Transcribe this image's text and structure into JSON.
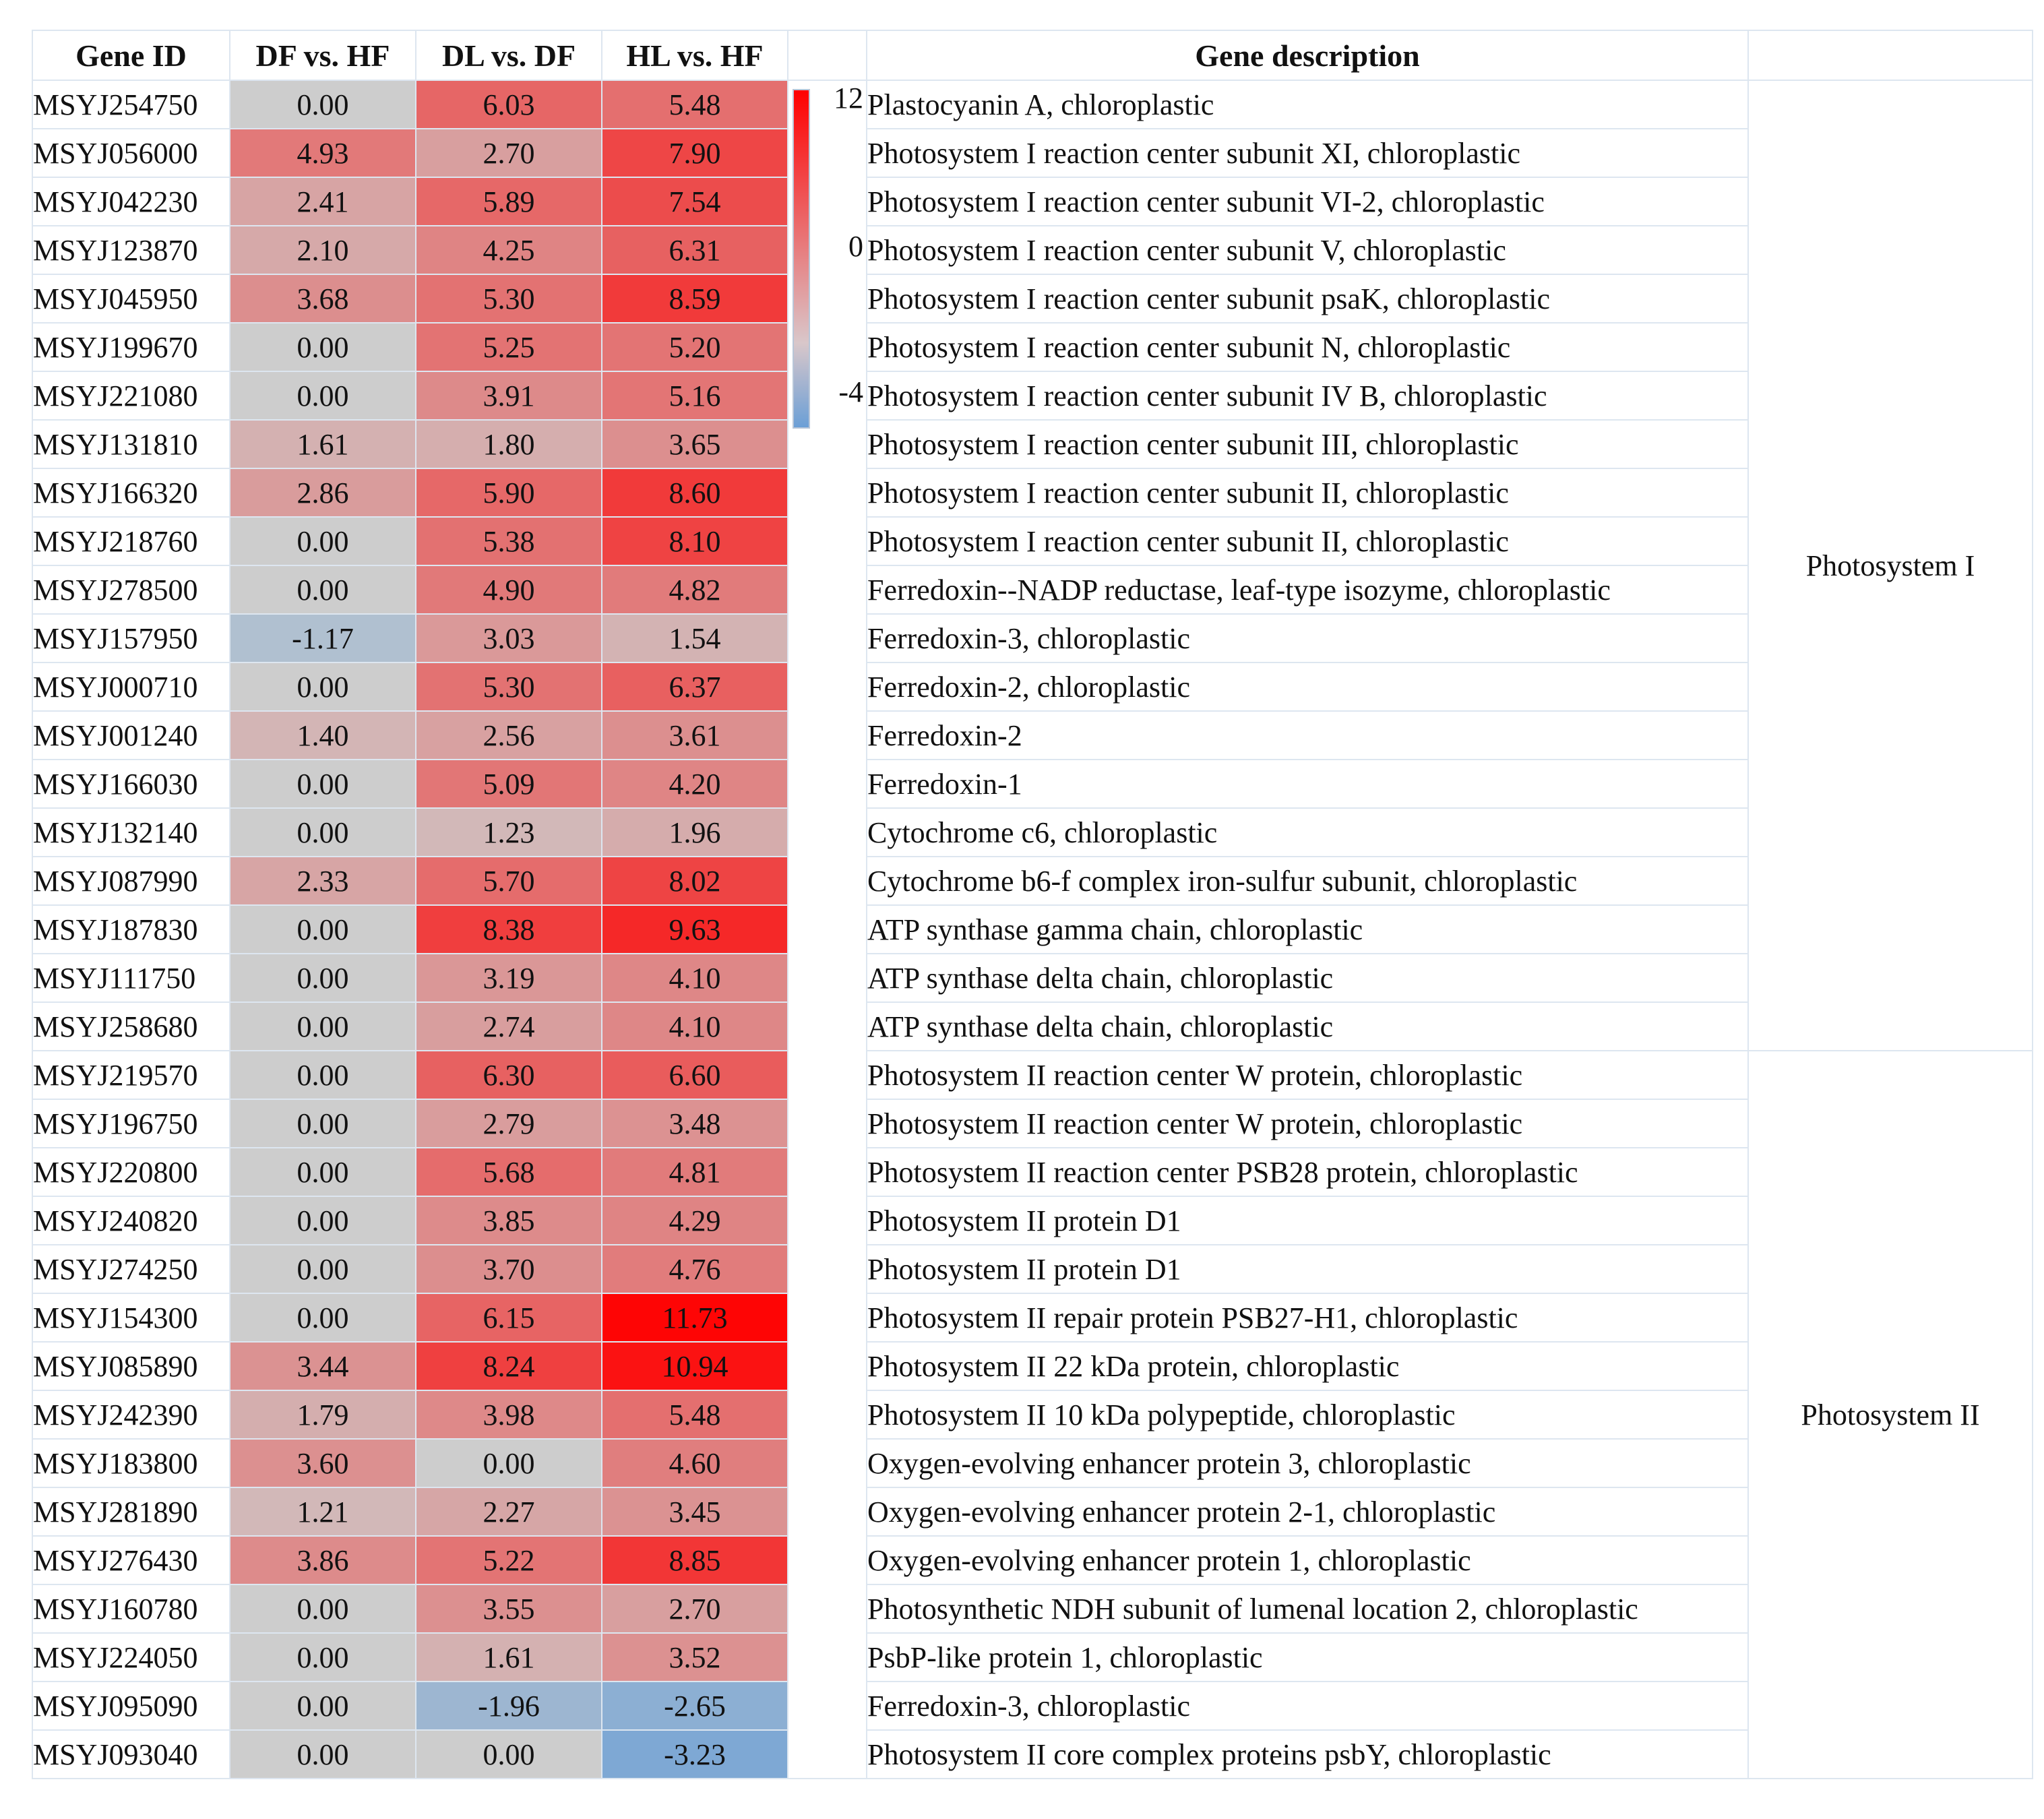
{
  "chart_data": {
    "type": "heatmap",
    "columns": [
      "Gene ID",
      "DF vs. HF",
      "DL vs. DF",
      "HL vs. HF",
      "",
      "Gene description",
      ""
    ],
    "value_columns": [
      "DF vs. HF",
      "DL vs. DF",
      "HL vs. HF"
    ],
    "color_scale": {
      "min": -4,
      "mid": 0,
      "max": 12,
      "labels": [
        "12",
        "0",
        "-4"
      ],
      "colors": {
        "low": "#6b9fd6",
        "mid": "#cdcdcd",
        "high": "#ff0000"
      }
    },
    "rows": [
      {
        "id": "MSYJ254750",
        "values": [
          "0.00",
          "6.03",
          "5.48"
        ],
        "desc": "Plastocyanin A, chloroplastic"
      },
      {
        "id": "MSYJ056000",
        "values": [
          "4.93",
          "2.70",
          "7.90"
        ],
        "desc": "Photosystem I reaction center subunit XI, chloroplastic"
      },
      {
        "id": "MSYJ042230",
        "values": [
          "2.41",
          "5.89",
          "7.54"
        ],
        "desc": "Photosystem I reaction center subunit VI-2, chloroplastic"
      },
      {
        "id": "MSYJ123870",
        "values": [
          "2.10",
          "4.25",
          "6.31"
        ],
        "desc": "Photosystem I reaction center subunit V, chloroplastic"
      },
      {
        "id": "MSYJ045950",
        "values": [
          "3.68",
          "5.30",
          "8.59"
        ],
        "desc": "Photosystem I reaction center subunit psaK, chloroplastic"
      },
      {
        "id": "MSYJ199670",
        "values": [
          "0.00",
          "5.25",
          "5.20"
        ],
        "desc": "Photosystem I reaction center subunit N, chloroplastic"
      },
      {
        "id": "MSYJ221080",
        "values": [
          "0.00",
          "3.91",
          "5.16"
        ],
        "desc": "Photosystem I reaction center subunit IV B, chloroplastic"
      },
      {
        "id": "MSYJ131810",
        "values": [
          "1.61",
          "1.80",
          "3.65"
        ],
        "desc": "Photosystem I reaction center subunit III, chloroplastic"
      },
      {
        "id": "MSYJ166320",
        "values": [
          "2.86",
          "5.90",
          "8.60"
        ],
        "desc": "Photosystem I reaction center subunit II, chloroplastic"
      },
      {
        "id": "MSYJ218760",
        "values": [
          "0.00",
          "5.38",
          "8.10"
        ],
        "desc": "Photosystem I reaction center subunit II, chloroplastic"
      },
      {
        "id": "MSYJ278500",
        "values": [
          "0.00",
          "4.90",
          "4.82"
        ],
        "desc": "Ferredoxin--NADP reductase, leaf-type isozyme, chloroplastic"
      },
      {
        "id": "MSYJ157950",
        "values": [
          "-1.17",
          "3.03",
          "1.54"
        ],
        "desc": "Ferredoxin-3, chloroplastic"
      },
      {
        "id": "MSYJ000710",
        "values": [
          "0.00",
          "5.30",
          "6.37"
        ],
        "desc": "Ferredoxin-2, chloroplastic"
      },
      {
        "id": "MSYJ001240",
        "values": [
          "1.40",
          "2.56",
          "3.61"
        ],
        "desc": "Ferredoxin-2"
      },
      {
        "id": "MSYJ166030",
        "values": [
          "0.00",
          "5.09",
          "4.20"
        ],
        "desc": "Ferredoxin-1"
      },
      {
        "id": "MSYJ132140",
        "values": [
          "0.00",
          "1.23",
          "1.96"
        ],
        "desc": "Cytochrome c6, chloroplastic"
      },
      {
        "id": "MSYJ087990",
        "values": [
          "2.33",
          "5.70",
          "8.02"
        ],
        "desc": "Cytochrome b6-f complex iron-sulfur subunit, chloroplastic"
      },
      {
        "id": "MSYJ187830",
        "values": [
          "0.00",
          "8.38",
          "9.63"
        ],
        "desc": "ATP synthase gamma chain, chloroplastic"
      },
      {
        "id": "MSYJ111750",
        "values": [
          "0.00",
          "3.19",
          "4.10"
        ],
        "desc": "ATP synthase delta chain, chloroplastic"
      },
      {
        "id": "MSYJ258680",
        "values": [
          "0.00",
          "2.74",
          "4.10"
        ],
        "desc": "ATP synthase delta chain, chloroplastic"
      },
      {
        "id": "MSYJ219570",
        "values": [
          "0.00",
          "6.30",
          "6.60"
        ],
        "desc": "Photosystem II reaction center W protein, chloroplastic"
      },
      {
        "id": "MSYJ196750",
        "values": [
          "0.00",
          "2.79",
          "3.48"
        ],
        "desc": "Photosystem II reaction center W protein, chloroplastic"
      },
      {
        "id": "MSYJ220800",
        "values": [
          "0.00",
          "5.68",
          "4.81"
        ],
        "desc": "Photosystem II reaction center PSB28 protein, chloroplastic"
      },
      {
        "id": "MSYJ240820",
        "values": [
          "0.00",
          "3.85",
          "4.29"
        ],
        "desc": "Photosystem II protein D1"
      },
      {
        "id": "MSYJ274250",
        "values": [
          "0.00",
          "3.70",
          "4.76"
        ],
        "desc": "Photosystem II protein D1"
      },
      {
        "id": "MSYJ154300",
        "values": [
          "0.00",
          "6.15",
          "11.73"
        ],
        "desc": "Photosystem II repair protein PSB27-H1, chloroplastic"
      },
      {
        "id": "MSYJ085890",
        "values": [
          "3.44",
          "8.24",
          "10.94"
        ],
        "desc": "Photosystem II 22 kDa protein, chloroplastic"
      },
      {
        "id": "MSYJ242390",
        "values": [
          "1.79",
          "3.98",
          "5.48"
        ],
        "desc": "Photosystem II 10 kDa polypeptide, chloroplastic"
      },
      {
        "id": "MSYJ183800",
        "values": [
          "3.60",
          "0.00",
          "4.60"
        ],
        "desc": "Oxygen-evolving enhancer protein 3, chloroplastic"
      },
      {
        "id": "MSYJ281890",
        "values": [
          "1.21",
          "2.27",
          "3.45"
        ],
        "desc": "Oxygen-evolving enhancer protein 2-1, chloroplastic"
      },
      {
        "id": "MSYJ276430",
        "values": [
          "3.86",
          "5.22",
          "8.85"
        ],
        "desc": "Oxygen-evolving enhancer protein 1, chloroplastic"
      },
      {
        "id": "MSYJ160780",
        "values": [
          "0.00",
          "3.55",
          "2.70"
        ],
        "desc": "Photosynthetic NDH subunit of lumenal location 2, chloroplastic"
      },
      {
        "id": "MSYJ224050",
        "values": [
          "0.00",
          "1.61",
          "3.52"
        ],
        "desc": "PsbP-like protein 1, chloroplastic"
      },
      {
        "id": "MSYJ095090",
        "values": [
          "0.00",
          "-1.96",
          "-2.65"
        ],
        "desc": "Ferredoxin-3, chloroplastic"
      },
      {
        "id": "MSYJ093040",
        "values": [
          "0.00",
          "0.00",
          "-3.23"
        ],
        "desc": "Photosystem II core complex proteins psbY, chloroplastic"
      }
    ],
    "groups": [
      {
        "label": "Photosystem I",
        "row_count": 20
      },
      {
        "label": "Photosystem II",
        "row_count": 15
      }
    ]
  }
}
